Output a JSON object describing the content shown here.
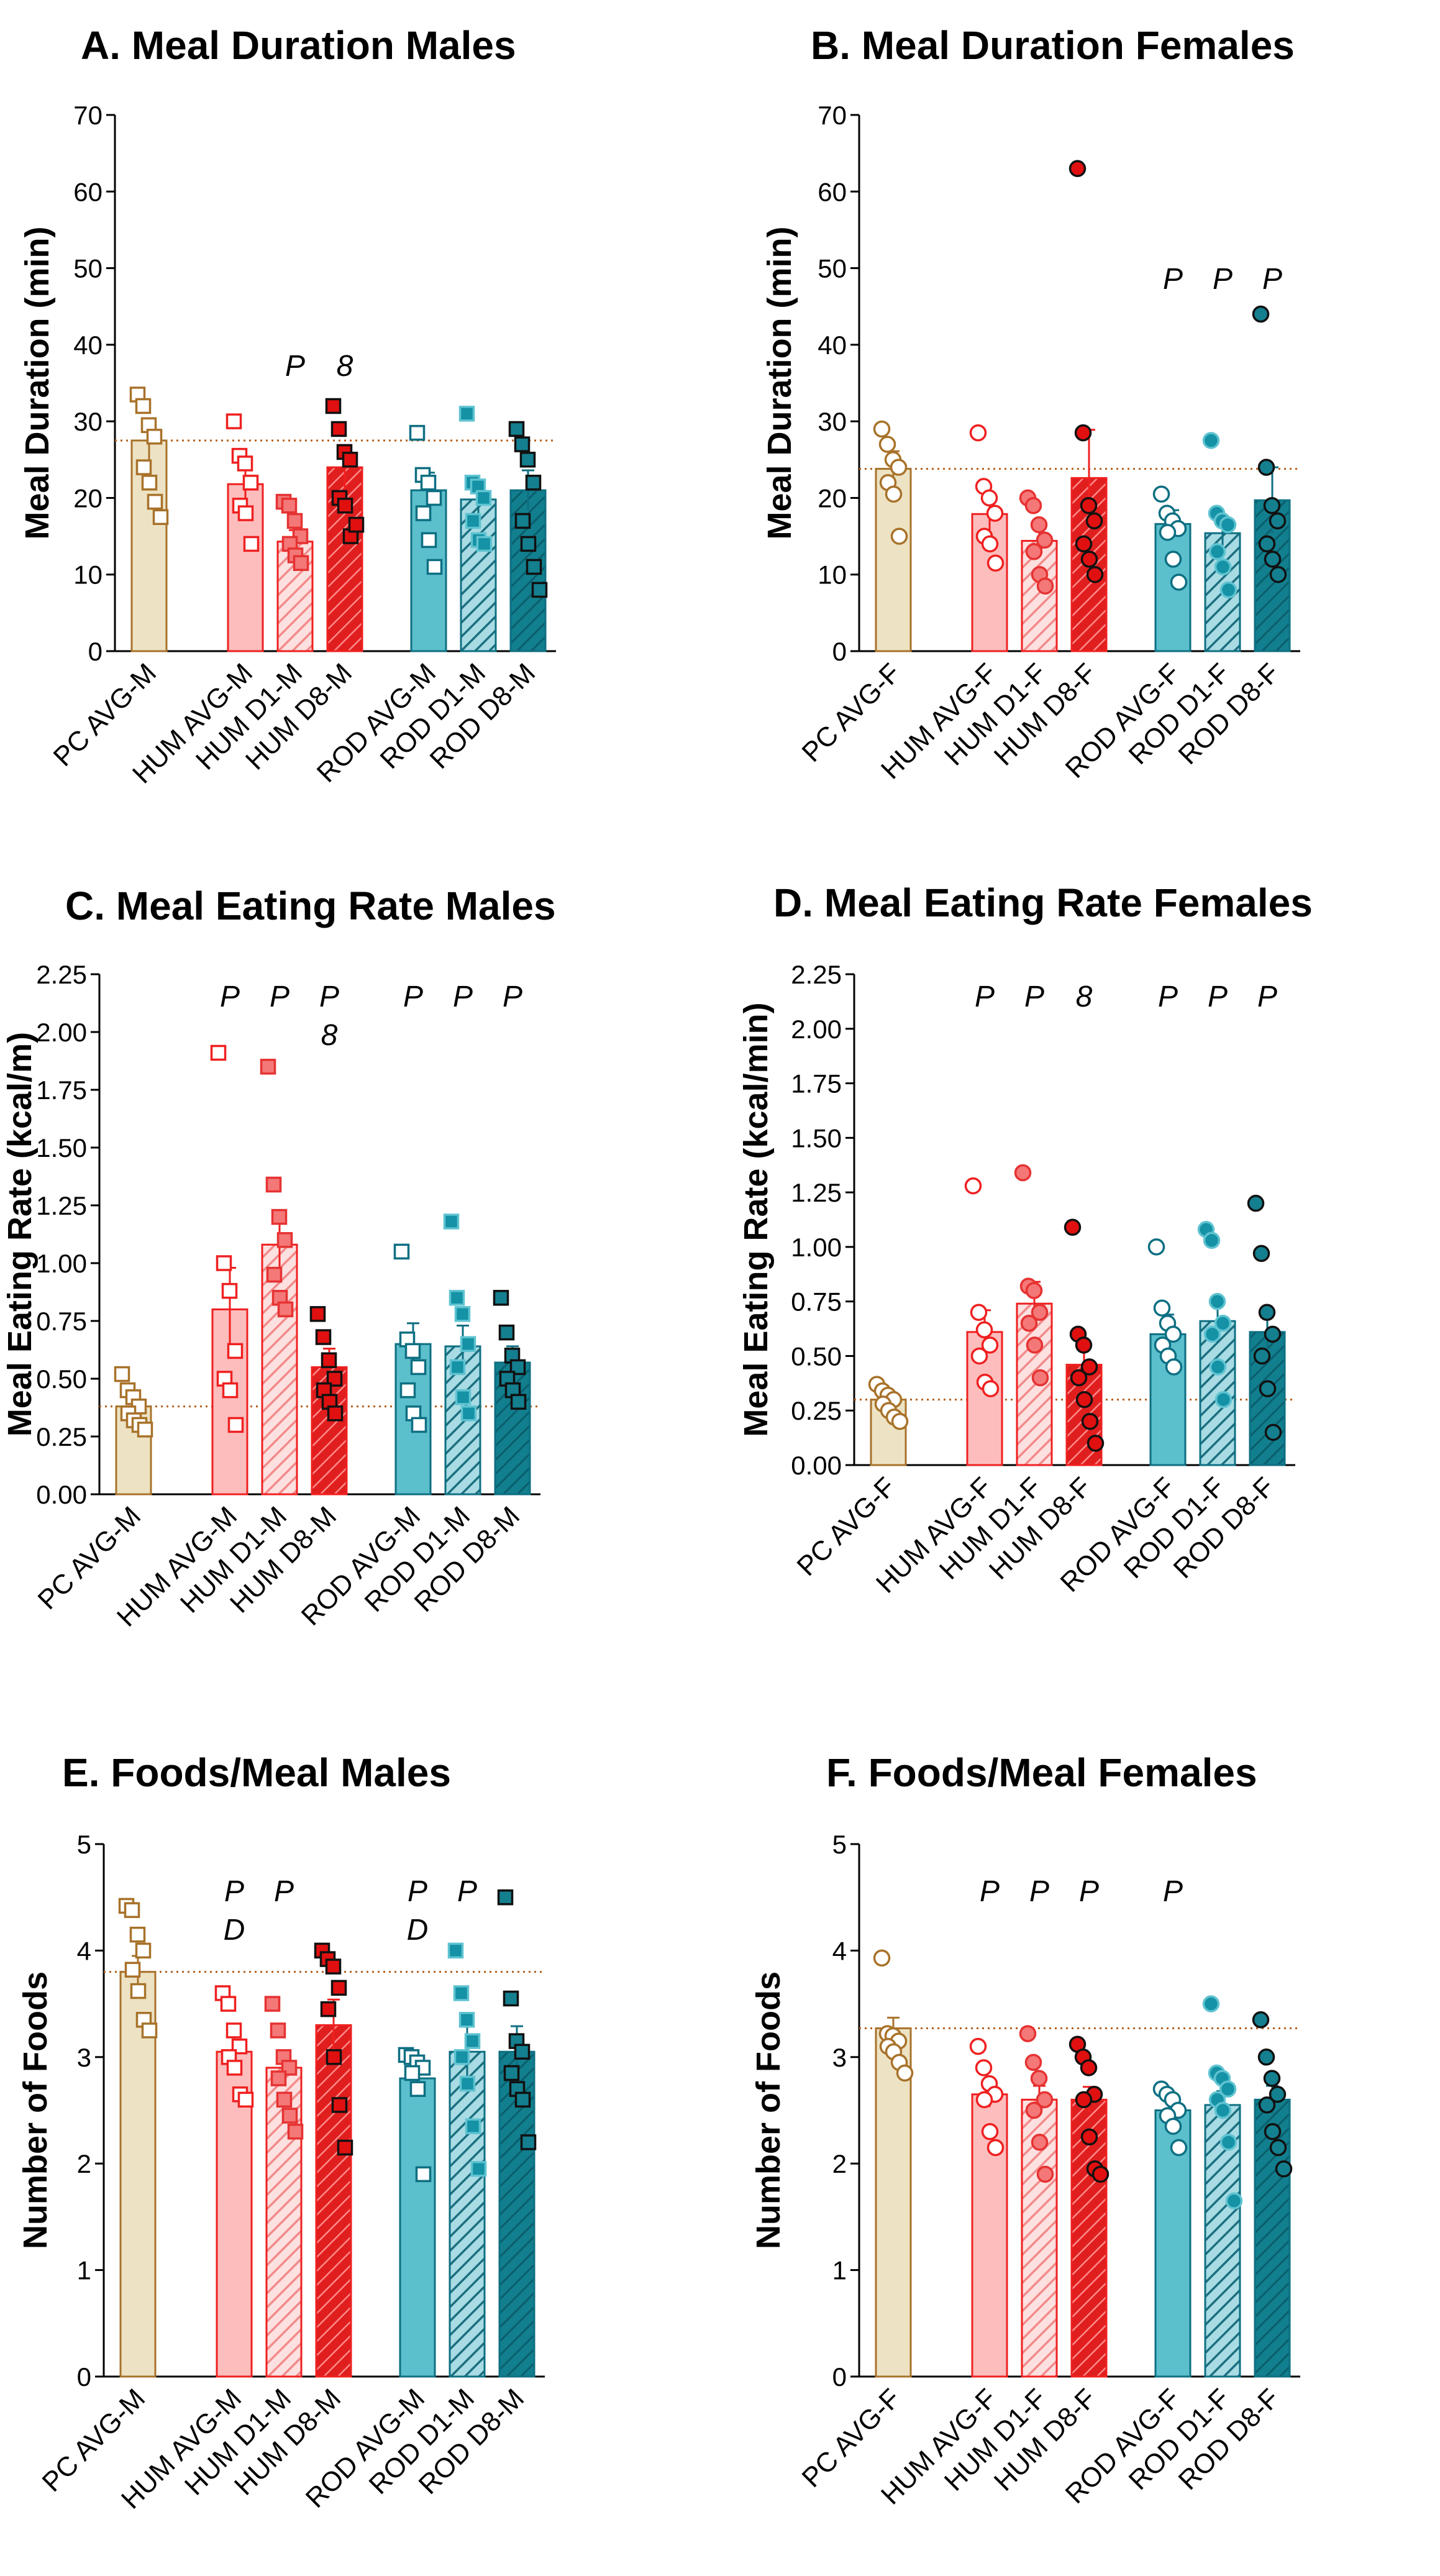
{
  "colors": {
    "pc_fill": "#ede3c4",
    "pc_line": "#a8722a",
    "hum_light": "#fdbdbd",
    "hum_line": "#ef2020",
    "hum_dark": "#e01e1e",
    "rod_light": "#5bbfcc",
    "rod_line": "#0e6f82",
    "rod_dark": "#127f8e",
    "ref_line": "#b4601e"
  },
  "panels": [
    {
      "letter": "A.",
      "title": "Meal Duration Males",
      "ylabel": "Meal Duration (min)",
      "ylim": [
        0,
        70
      ],
      "yticks": [
        "0",
        "10",
        "20",
        "30",
        "40",
        "50",
        "60",
        "70"
      ],
      "ref_value": 27.5,
      "marker": "square",
      "categories": [
        "PC AVG-M",
        "HUM AVG-M",
        "HUM D1-M",
        "HUM D8-M",
        "ROD AVG-M",
        "ROD D1-M",
        "ROD D8-M"
      ],
      "means": [
        27.5,
        21.8,
        14.3,
        24.0,
        21.0,
        19.8,
        21.0
      ],
      "sems": [
        2.5,
        2.7,
        1.5,
        2.9,
        2.3,
        2.5,
        2.6
      ],
      "points": [
        [
          33.5,
          32,
          29.5,
          28,
          24,
          22,
          19.5,
          17.5
        ],
        [
          30,
          25.5,
          24.5,
          22,
          19,
          18,
          14
        ],
        [
          19.5,
          19,
          17,
          15,
          14,
          12.5,
          11.5
        ],
        [
          32,
          29,
          26,
          25,
          20,
          19,
          15,
          16.5
        ],
        [
          28.5,
          23,
          22,
          20,
          18,
          14.5,
          11
        ],
        [
          31,
          22,
          21.5,
          20,
          17,
          14.5,
          14
        ],
        [
          29,
          27,
          25,
          22,
          17,
          14,
          11,
          8
        ]
      ],
      "annotations": [
        [],
        [],
        [
          "P"
        ],
        [
          "8"
        ],
        [],
        [],
        []
      ]
    },
    {
      "letter": "B.",
      "title": "Meal Duration Females",
      "ylabel": "Meal Duration (min)",
      "ylim": [
        0,
        70
      ],
      "yticks": [
        "0",
        "10",
        "20",
        "30",
        "40",
        "50",
        "60",
        "70"
      ],
      "ref_value": 23.8,
      "marker": "circle",
      "categories": [
        "PC AVG-F",
        "HUM AVG-F",
        "HUM D1-F",
        "HUM D8-F",
        "ROD AVG-F",
        "ROD D1-F",
        "ROD D8-F"
      ],
      "means": [
        23.8,
        17.9,
        14.4,
        22.6,
        16.6,
        15.4,
        19.7
      ],
      "sems": [
        2.3,
        2.2,
        1.6,
        6.3,
        1.8,
        2.2,
        4.3
      ],
      "points": [
        [
          29,
          27,
          25,
          24,
          22,
          20.5,
          15
        ],
        [
          28.5,
          21.5,
          20,
          18,
          15,
          14,
          11.5
        ],
        [
          20,
          19,
          16.5,
          14.5,
          13,
          10,
          8.5
        ],
        [
          63,
          28.5,
          19,
          17,
          14,
          12,
          10
        ],
        [
          20.5,
          18,
          17,
          16,
          15.5,
          12,
          9
        ],
        [
          27.5,
          18,
          17,
          16.5,
          13,
          11,
          8
        ],
        [
          44,
          24,
          19,
          17,
          14,
          12,
          10
        ]
      ],
      "annotations": [
        [],
        [],
        [],
        [],
        [
          "P"
        ],
        [
          "P"
        ],
        [
          "P"
        ]
      ]
    },
    {
      "letter": "C.",
      "title": "Meal Eating Rate Males",
      "ylabel": "Meal Eating Rate (kcal/m)",
      "ylim": [
        0,
        2.25
      ],
      "yticks": [
        "0.00",
        "0.25",
        "0.50",
        "0.75",
        "1.00",
        "1.25",
        "1.50",
        "1.75",
        "2.00",
        "2.25"
      ],
      "ref_value": 0.38,
      "marker": "square",
      "categories": [
        "PC AVG-M",
        "HUM AVG-M",
        "HUM D1-M",
        "HUM D8-M",
        "ROD AVG-M",
        "ROD D1-M",
        "ROD D8-M"
      ],
      "means": [
        0.38,
        0.8,
        1.08,
        0.55,
        0.65,
        0.64,
        0.57
      ],
      "sems": [
        0.03,
        0.18,
        0.13,
        0.08,
        0.09,
        0.09,
        0.07
      ],
      "points": [
        [
          0.52,
          0.45,
          0.42,
          0.38,
          0.35,
          0.32,
          0.3,
          0.28
        ],
        [
          1.91,
          1.0,
          0.88,
          0.62,
          0.5,
          0.45,
          0.3
        ],
        [
          1.85,
          1.34,
          1.2,
          1.1,
          0.95,
          0.85,
          0.8
        ],
        [
          0.78,
          0.68,
          0.58,
          0.5,
          0.45,
          0.4,
          0.35
        ],
        [
          1.05,
          0.67,
          0.62,
          0.55,
          0.45,
          0.35,
          0.3
        ],
        [
          1.18,
          0.85,
          0.78,
          0.65,
          0.55,
          0.42,
          0.35
        ],
        [
          0.85,
          0.7,
          0.6,
          0.55,
          0.5,
          0.45,
          0.4
        ]
      ],
      "annotations": [
        [],
        [
          "P"
        ],
        [
          "P"
        ],
        [
          "P",
          "8"
        ],
        [
          "P"
        ],
        [
          "P"
        ],
        [
          "P"
        ]
      ]
    },
    {
      "letter": "D.",
      "title": "Meal Eating Rate Females",
      "ylabel": "Meal Eating Rate (kcal/min)",
      "ylim": [
        0,
        2.25
      ],
      "yticks": [
        "0.00",
        "0.25",
        "0.50",
        "0.75",
        "1.00",
        "1.25",
        "1.50",
        "1.75",
        "2.00",
        "2.25"
      ],
      "ref_value": 0.3,
      "marker": "circle",
      "categories": [
        "PC AVG-F",
        "HUM AVG-F",
        "HUM D1-F",
        "HUM D8-F",
        "ROD AVG-F",
        "ROD D1-F",
        "ROD D8-F"
      ],
      "means": [
        0.3,
        0.61,
        0.74,
        0.46,
        0.6,
        0.66,
        0.61
      ],
      "sems": [
        0.03,
        0.1,
        0.1,
        0.1,
        0.09,
        0.1,
        0.11
      ],
      "points": [
        [
          0.37,
          0.34,
          0.32,
          0.3,
          0.28,
          0.25,
          0.22,
          0.2
        ],
        [
          1.28,
          0.7,
          0.62,
          0.55,
          0.5,
          0.38,
          0.35
        ],
        [
          1.34,
          0.82,
          0.8,
          0.7,
          0.65,
          0.55,
          0.4
        ],
        [
          1.09,
          0.6,
          0.55,
          0.45,
          0.4,
          0.3,
          0.2,
          0.1
        ],
        [
          1.0,
          0.72,
          0.65,
          0.6,
          0.55,
          0.5,
          0.45
        ],
        [
          1.08,
          1.03,
          0.75,
          0.65,
          0.6,
          0.45,
          0.3
        ],
        [
          1.2,
          0.97,
          0.7,
          0.6,
          0.5,
          0.35,
          0.15
        ]
      ],
      "annotations": [
        [],
        [
          "P"
        ],
        [
          "P"
        ],
        [
          "8"
        ],
        [
          "P"
        ],
        [
          "P"
        ],
        [
          "P"
        ]
      ]
    },
    {
      "letter": "E.",
      "title": "Foods/Meal Males",
      "ylabel": "Number of Foods",
      "ylim": [
        0,
        5
      ],
      "yticks": [
        "0",
        "1",
        "2",
        "3",
        "4",
        "5"
      ],
      "ref_value": 3.8,
      "marker": "square",
      "categories": [
        "PC AVG-M",
        "HUM AVG-M",
        "HUM D1-M",
        "HUM D8-M",
        "ROD AVG-M",
        "ROD D1-M",
        "ROD D8-M"
      ],
      "means": [
        3.8,
        3.05,
        2.9,
        3.3,
        2.8,
        3.05,
        3.05
      ],
      "sems": [
        0.15,
        0.16,
        0.14,
        0.24,
        0.13,
        0.24,
        0.24
      ],
      "points": [
        [
          4.42,
          4.38,
          4.15,
          4.0,
          3.82,
          3.62,
          3.35,
          3.25
        ],
        [
          3.6,
          3.5,
          3.25,
          3.1,
          3.0,
          2.9,
          2.65,
          2.6
        ],
        [
          3.5,
          3.25,
          3.0,
          2.9,
          2.8,
          2.6,
          2.45,
          2.3
        ],
        [
          4.0,
          3.92,
          3.85,
          3.65,
          3.45,
          3.0,
          2.55,
          2.15
        ],
        [
          3.02,
          3.0,
          2.95,
          2.9,
          2.85,
          2.7,
          1.9
        ],
        [
          4.0,
          3.6,
          3.35,
          3.15,
          3.0,
          2.75,
          2.35,
          1.95
        ],
        [
          4.5,
          3.55,
          3.15,
          3.05,
          2.85,
          2.7,
          2.6,
          2.2
        ]
      ],
      "annotations": [
        [],
        [
          "P",
          "D"
        ],
        [
          "P"
        ],
        [],
        [
          "P",
          "D"
        ],
        [
          "P"
        ],
        []
      ]
    },
    {
      "letter": "F.",
      "title": "Foods/Meal Females",
      "ylabel": "Number of Foods",
      "ylim": [
        0,
        5
      ],
      "yticks": [
        "0",
        "1",
        "2",
        "3",
        "4",
        "5"
      ],
      "ref_value": 3.27,
      "marker": "circle",
      "categories": [
        "PC AVG-F",
        "HUM AVG-F",
        "HUM D1-F",
        "HUM D8-F",
        "ROD AVG-F",
        "ROD D1-F",
        "ROD D8-F"
      ],
      "means": [
        3.27,
        2.65,
        2.6,
        2.6,
        2.5,
        2.55,
        2.6
      ],
      "sems": [
        0.1,
        0.12,
        0.13,
        0.12,
        0.1,
        0.13,
        0.13
      ],
      "points": [
        [
          3.93,
          3.22,
          3.2,
          3.15,
          3.1,
          3.05,
          2.95,
          2.85
        ],
        [
          3.1,
          2.9,
          2.75,
          2.65,
          2.6,
          2.3,
          2.15
        ],
        [
          3.22,
          2.95,
          2.8,
          2.6,
          2.5,
          2.2,
          1.9
        ],
        [
          3.12,
          3.0,
          2.9,
          2.65,
          2.6,
          2.25,
          1.95,
          1.9
        ],
        [
          2.7,
          2.65,
          2.6,
          2.5,
          2.45,
          2.35,
          2.15
        ],
        [
          3.5,
          2.85,
          2.8,
          2.7,
          2.6,
          2.5,
          2.2,
          1.65
        ],
        [
          3.35,
          3.0,
          2.8,
          2.65,
          2.55,
          2.3,
          2.15,
          1.95
        ]
      ],
      "annotations": [
        [],
        [
          "P"
        ],
        [
          "P"
        ],
        [
          "P"
        ],
        [
          "P"
        ],
        [],
        []
      ]
    }
  ],
  "chart_data": [
    {
      "type": "bar",
      "title": "A. Meal Duration Males",
      "ylabel": "Meal Duration (min)",
      "ylim": [
        0,
        70
      ],
      "categories": [
        "PC AVG-M",
        "HUM AVG-M",
        "HUM D1-M",
        "HUM D8-M",
        "ROD AVG-M",
        "ROD D1-M",
        "ROD D8-M"
      ],
      "values": [
        27.5,
        21.8,
        14.3,
        24.0,
        21.0,
        19.8,
        21.0
      ]
    },
    {
      "type": "bar",
      "title": "B. Meal Duration Females",
      "ylabel": "Meal Duration (min)",
      "ylim": [
        0,
        70
      ],
      "categories": [
        "PC AVG-F",
        "HUM AVG-F",
        "HUM D1-F",
        "HUM D8-F",
        "ROD AVG-F",
        "ROD D1-F",
        "ROD D8-F"
      ],
      "values": [
        23.8,
        17.9,
        14.4,
        22.6,
        16.6,
        15.4,
        19.7
      ]
    },
    {
      "type": "bar",
      "title": "C. Meal Eating Rate Males",
      "ylabel": "Meal Eating Rate (kcal/m)",
      "ylim": [
        0,
        2.25
      ],
      "categories": [
        "PC AVG-M",
        "HUM AVG-M",
        "HUM D1-M",
        "HUM D8-M",
        "ROD AVG-M",
        "ROD D1-M",
        "ROD D8-M"
      ],
      "values": [
        0.38,
        0.8,
        1.08,
        0.55,
        0.65,
        0.64,
        0.57
      ]
    },
    {
      "type": "bar",
      "title": "D. Meal Eating Rate Females",
      "ylabel": "Meal Eating Rate (kcal/min)",
      "ylim": [
        0,
        2.25
      ],
      "categories": [
        "PC AVG-F",
        "HUM AVG-F",
        "HUM D1-F",
        "HUM D8-F",
        "ROD AVG-F",
        "ROD D1-F",
        "ROD D8-F"
      ],
      "values": [
        0.3,
        0.61,
        0.74,
        0.46,
        0.6,
        0.66,
        0.61
      ]
    },
    {
      "type": "bar",
      "title": "E. Foods/Meal Males",
      "ylabel": "Number of Foods",
      "ylim": [
        0,
        5
      ],
      "categories": [
        "PC AVG-M",
        "HUM AVG-M",
        "HUM D1-M",
        "HUM D8-M",
        "ROD AVG-M",
        "ROD D1-M",
        "ROD D8-M"
      ],
      "values": [
        3.8,
        3.05,
        2.9,
        3.3,
        2.8,
        3.05,
        3.05
      ]
    },
    {
      "type": "bar",
      "title": "F. Foods/Meal Females",
      "ylabel": "Number of Foods",
      "ylim": [
        0,
        5
      ],
      "categories": [
        "PC AVG-F",
        "HUM AVG-F",
        "HUM D1-F",
        "HUM D8-F",
        "ROD AVG-F",
        "ROD D1-F",
        "ROD D8-F"
      ],
      "values": [
        3.27,
        2.65,
        2.6,
        2.6,
        2.5,
        2.55,
        2.6
      ]
    }
  ]
}
